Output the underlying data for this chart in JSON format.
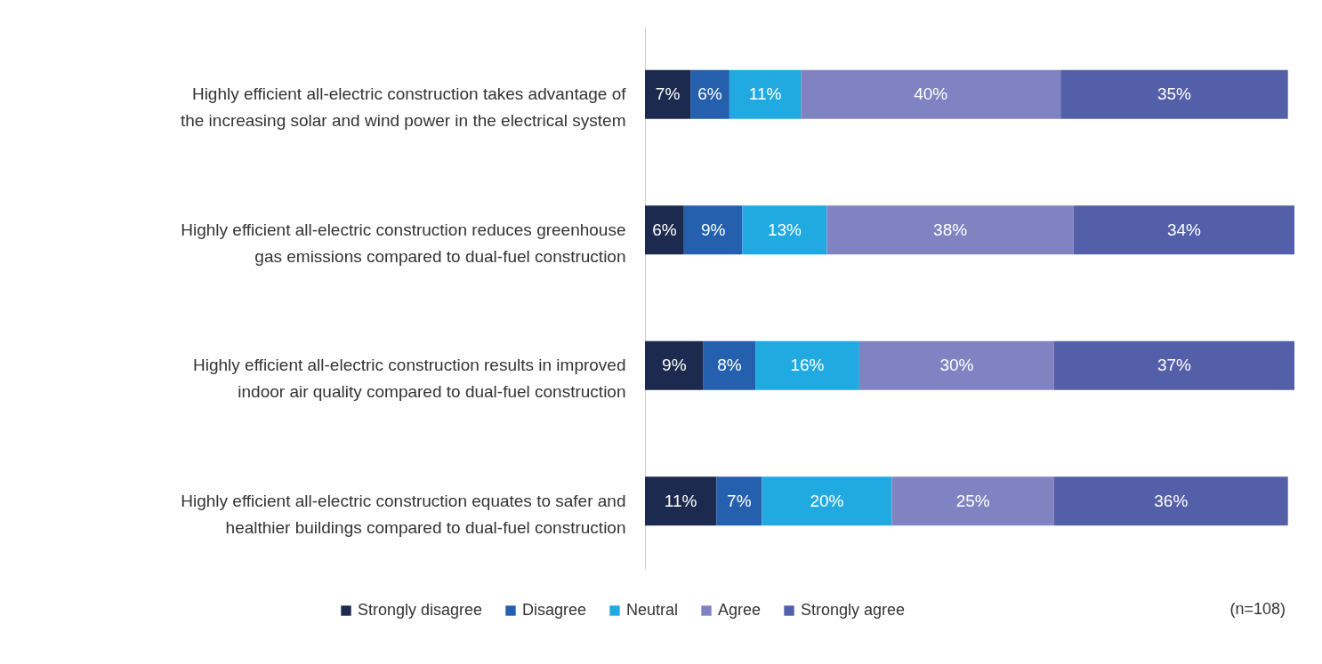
{
  "chart_data": {
    "type": "bar",
    "orientation": "horizontal",
    "stacked": true,
    "legend": "bottom",
    "categories": [
      "Highly efficient all-electric construction takes advantage of the increasing solar and wind power in the electrical system",
      "Highly efficient all-electric construction reduces greenhouse gas emissions compared to dual-fuel construction",
      "Highly efficient all-electric construction results in improved indoor air quality compared to dual-fuel construction",
      "Highly efficient all-electric construction equates to safer and healthier buildings compared to dual-fuel construction"
    ],
    "series": [
      {
        "name": "Strongly disagree",
        "color": "#1b2a4e",
        "values": [
          7,
          6,
          9,
          11
        ],
        "value_labels": [
          "7%",
          "6%",
          "9%",
          "11%"
        ]
      },
      {
        "name": "Disagree",
        "color": "#2460ad",
        "values": [
          6,
          9,
          8,
          7
        ],
        "value_labels": [
          "6%",
          "9%",
          "8%",
          "7%"
        ]
      },
      {
        "name": "Neutral",
        "color": "#21aae1",
        "values": [
          11,
          13,
          16,
          20
        ],
        "value_labels": [
          "11%",
          "13%",
          "16%",
          "20%"
        ]
      },
      {
        "name": "Agree",
        "color": "#8083c2",
        "values": [
          40,
          38,
          30,
          25
        ],
        "value_labels": [
          "40%",
          "38%",
          "30%",
          "25%"
        ]
      },
      {
        "name": "Strongly agree",
        "color": "#535fa9",
        "values": [
          35,
          34,
          37,
          36
        ],
        "value_labels": [
          "35%",
          "34%",
          "37%",
          "36%"
        ]
      }
    ],
    "annotations": [
      "(n=108)"
    ]
  }
}
